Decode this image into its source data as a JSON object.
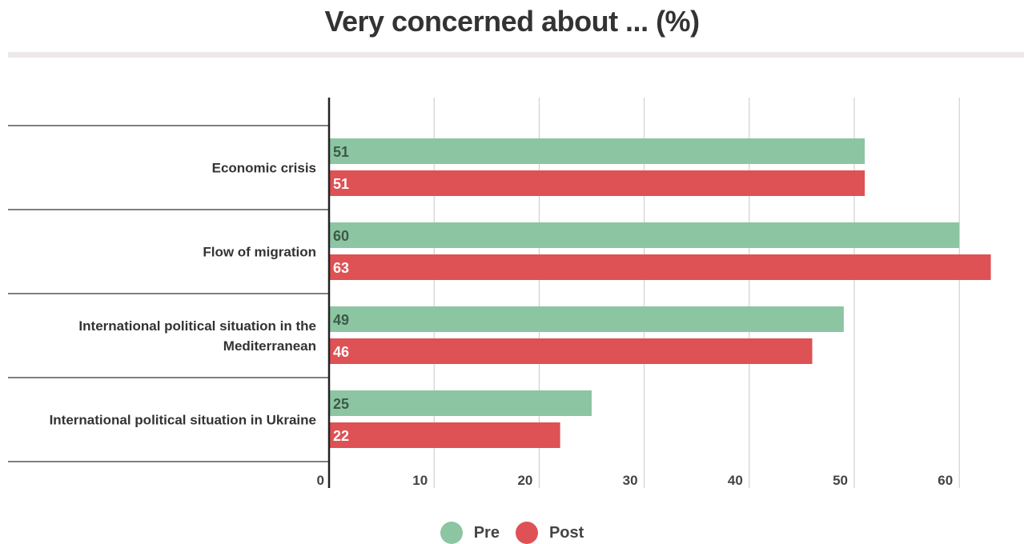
{
  "title": "Very concerned about ... (%)",
  "colors": {
    "pre": "#8cc5a2",
    "post": "#de5154"
  },
  "chart_data": {
    "type": "bar",
    "orientation": "horizontal",
    "title": "Very concerned about ... (%)",
    "categories": [
      [
        "Economic crisis"
      ],
      [
        "Flow of migration"
      ],
      [
        "International political situation in the",
        "Mediterranean"
      ],
      [
        "International political situation in Ukraine"
      ]
    ],
    "series": [
      {
        "name": "Pre",
        "values": [
          51,
          60,
          49,
          25
        ]
      },
      {
        "name": "Post",
        "values": [
          51,
          63,
          46,
          22
        ]
      }
    ],
    "xlim": [
      0,
      66
    ],
    "xticks": [
      0,
      10,
      20,
      30,
      40,
      50,
      60
    ],
    "grid": true,
    "legend_position": "bottom-center"
  }
}
